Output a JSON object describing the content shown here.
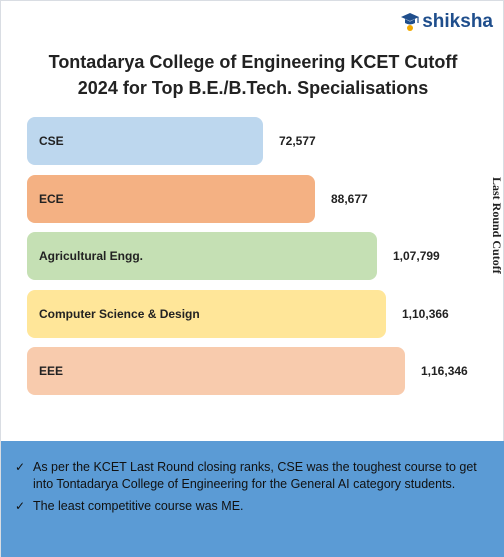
{
  "brand": {
    "name": "shiksha",
    "icon": "graduation-cap-icon"
  },
  "chart_data": {
    "type": "bar",
    "orientation": "horizontal",
    "title": "Tontadarya College of Engineering KCET Cutoff 2024 for Top B.E./B.Tech. Specialisations",
    "title_lines": [
      "Tontadarya College of Engineering KCET Cutoff",
      "2024 for Top B.E./B.Tech. Specialisations"
    ],
    "ylabel": "Last Round Cutoff",
    "categories": [
      "CSE",
      "ECE",
      "Agricultural Engg.",
      "Computer Science & Design",
      "EEE"
    ],
    "values": [
      72577,
      88677,
      107799,
      110366,
      116346
    ],
    "value_labels": [
      "72,577",
      "88,677",
      "1,07,799",
      "1,10,366",
      "1,16,346"
    ],
    "colors": [
      "#bdd7ee",
      "#f4b183",
      "#c5e0b4",
      "#ffe699",
      "#f8cbad"
    ],
    "grid": false
  },
  "notes": [
    "As per the KCET Last Round closing ranks, CSE was the toughest course to get into Tontadarya College of Engineering for the General AI category students.",
    "The least competitive course was ME."
  ],
  "check_glyph": "✓"
}
